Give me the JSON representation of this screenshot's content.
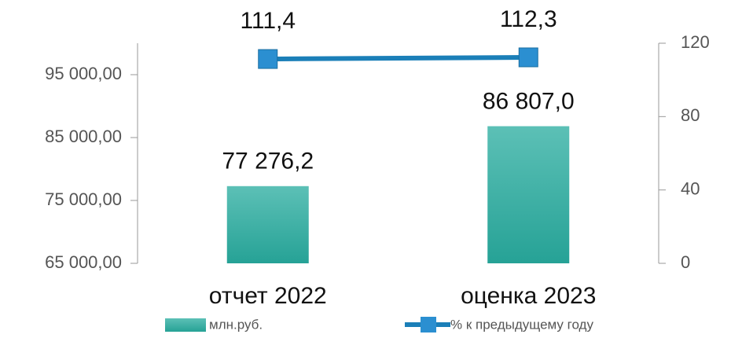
{
  "chart_data": {
    "type": "bar",
    "categories": [
      "отчет 2022",
      "оценка 2023"
    ],
    "series": [
      {
        "name": "млн.руб.",
        "type": "bar",
        "color": "#2fa89c",
        "values": [
          77276.2,
          86807.0
        ],
        "value_labels": [
          "77 276,2",
          "86 807,0"
        ]
      },
      {
        "name": "% к предыдущему году",
        "type": "line",
        "axis": "y2",
        "color": "#1b7fb8",
        "values": [
          111.4,
          112.3
        ],
        "value_labels": [
          "111,4",
          "112,3"
        ]
      }
    ],
    "ylim": [
      65000,
      100000
    ],
    "yticks": [
      {
        "value": 65000,
        "label": "65 000,00"
      },
      {
        "value": 75000,
        "label": "75 000,00"
      },
      {
        "value": 85000,
        "label": "85 000,00"
      },
      {
        "value": 95000,
        "label": "95 000,00"
      }
    ],
    "y2lim": [
      0,
      120
    ],
    "y2ticks": [
      0,
      40,
      80,
      120
    ],
    "legend": "bottom"
  }
}
